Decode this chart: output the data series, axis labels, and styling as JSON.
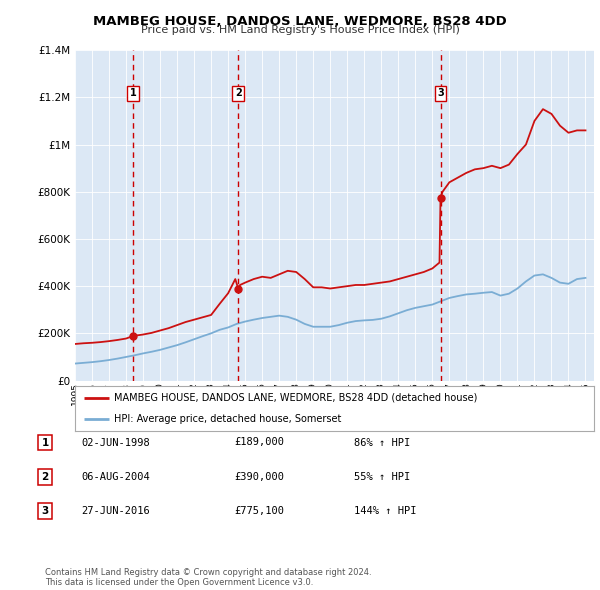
{
  "title": "MAMBEG HOUSE, DANDOS LANE, WEDMORE, BS28 4DD",
  "subtitle": "Price paid vs. HM Land Registry's House Price Index (HPI)",
  "plot_bg_color": "#dce8f5",
  "ylim": [
    0,
    1400000
  ],
  "xlim_start": 1995.0,
  "xlim_end": 2025.5,
  "yticks": [
    0,
    200000,
    400000,
    600000,
    800000,
    1000000,
    1200000,
    1400000
  ],
  "ytick_labels": [
    "£0",
    "£200K",
    "£400K",
    "£600K",
    "£800K",
    "£1M",
    "£1.2M",
    "£1.4M"
  ],
  "xticks": [
    1995,
    1996,
    1997,
    1998,
    1999,
    2000,
    2001,
    2002,
    2003,
    2004,
    2005,
    2006,
    2007,
    2008,
    2009,
    2010,
    2011,
    2012,
    2013,
    2014,
    2015,
    2016,
    2017,
    2018,
    2019,
    2020,
    2021,
    2022,
    2023,
    2024,
    2025
  ],
  "sale_dates": [
    1998.42,
    2004.59,
    2016.48
  ],
  "sale_prices": [
    189000,
    390000,
    775100
  ],
  "sale_labels": [
    "1",
    "2",
    "3"
  ],
  "sale_vline_color": "#cc0000",
  "property_line_color": "#cc1111",
  "hpi_line_color": "#7aadd4",
  "legend_label_property": "MAMBEG HOUSE, DANDOS LANE, WEDMORE, BS28 4DD (detached house)",
  "legend_label_hpi": "HPI: Average price, detached house, Somerset",
  "table_rows": [
    [
      "1",
      "02-JUN-1998",
      "£189,000",
      "86% ↑ HPI"
    ],
    [
      "2",
      "06-AUG-2004",
      "£390,000",
      "55% ↑ HPI"
    ],
    [
      "3",
      "27-JUN-2016",
      "£775,100",
      "144% ↑ HPI"
    ]
  ],
  "footer_text": "Contains HM Land Registry data © Crown copyright and database right 2024.\nThis data is licensed under the Open Government Licence v3.0.",
  "property_hpi_x": [
    1995.0,
    1995.5,
    1996.0,
    1996.5,
    1997.0,
    1997.5,
    1998.0,
    1998.42,
    1998.5,
    1999.0,
    1999.5,
    2000.0,
    2000.5,
    2001.0,
    2001.5,
    2002.0,
    2002.5,
    2003.0,
    2003.5,
    2004.0,
    2004.42,
    2004.59,
    2004.7,
    2005.0,
    2005.5,
    2006.0,
    2006.5,
    2007.0,
    2007.5,
    2008.0,
    2008.5,
    2009.0,
    2009.5,
    2010.0,
    2010.5,
    2011.0,
    2011.5,
    2012.0,
    2012.5,
    2013.0,
    2013.5,
    2014.0,
    2014.5,
    2015.0,
    2015.5,
    2016.0,
    2016.42,
    2016.48,
    2016.6,
    2017.0,
    2017.5,
    2018.0,
    2018.5,
    2019.0,
    2019.5,
    2020.0,
    2020.5,
    2021.0,
    2021.5,
    2022.0,
    2022.5,
    2023.0,
    2023.5,
    2024.0,
    2024.5,
    2025.0
  ],
  "property_hpi_y": [
    155000,
    158000,
    160000,
    163000,
    167000,
    172000,
    178000,
    189000,
    190000,
    195000,
    202000,
    212000,
    222000,
    235000,
    248000,
    258000,
    268000,
    278000,
    325000,
    370000,
    430000,
    390000,
    405000,
    415000,
    430000,
    440000,
    435000,
    450000,
    465000,
    460000,
    430000,
    395000,
    395000,
    390000,
    395000,
    400000,
    405000,
    405000,
    410000,
    415000,
    420000,
    430000,
    440000,
    450000,
    460000,
    475000,
    500000,
    775100,
    800000,
    840000,
    860000,
    880000,
    895000,
    900000,
    910000,
    900000,
    915000,
    960000,
    1000000,
    1100000,
    1150000,
    1130000,
    1080000,
    1050000,
    1060000,
    1060000
  ],
  "hpi_x": [
    1995.0,
    1995.5,
    1996.0,
    1996.5,
    1997.0,
    1997.5,
    1998.0,
    1998.5,
    1999.0,
    1999.5,
    2000.0,
    2000.5,
    2001.0,
    2001.5,
    2002.0,
    2002.5,
    2003.0,
    2003.5,
    2004.0,
    2004.5,
    2005.0,
    2005.5,
    2006.0,
    2006.5,
    2007.0,
    2007.5,
    2008.0,
    2008.5,
    2009.0,
    2009.5,
    2010.0,
    2010.5,
    2011.0,
    2011.5,
    2012.0,
    2012.5,
    2013.0,
    2013.5,
    2014.0,
    2014.5,
    2015.0,
    2015.5,
    2016.0,
    2016.5,
    2017.0,
    2017.5,
    2018.0,
    2018.5,
    2019.0,
    2019.5,
    2020.0,
    2020.5,
    2021.0,
    2021.5,
    2022.0,
    2022.5,
    2023.0,
    2023.5,
    2024.0,
    2024.5,
    2025.0
  ],
  "hpi_y": [
    72000,
    75000,
    78000,
    82000,
    87000,
    93000,
    100000,
    107000,
    115000,
    122000,
    130000,
    140000,
    150000,
    162000,
    175000,
    188000,
    200000,
    215000,
    225000,
    240000,
    250000,
    258000,
    265000,
    270000,
    275000,
    270000,
    258000,
    240000,
    228000,
    228000,
    228000,
    235000,
    245000,
    252000,
    255000,
    257000,
    262000,
    272000,
    285000,
    298000,
    308000,
    315000,
    322000,
    336000,
    350000,
    358000,
    365000,
    368000,
    372000,
    375000,
    360000,
    368000,
    390000,
    420000,
    445000,
    450000,
    435000,
    415000,
    410000,
    430000,
    435000
  ]
}
